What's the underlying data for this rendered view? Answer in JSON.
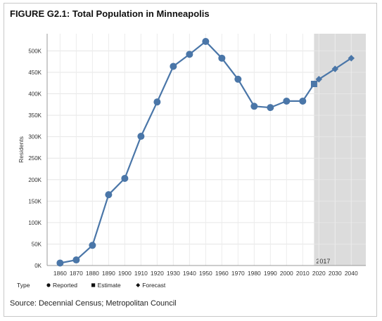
{
  "title": "FIGURE G2.1: Total Population in Minneapolis",
  "source": "Source: Decennial Census; Metropolitan Council",
  "chart_data": {
    "type": "line",
    "ylabel": "Residents",
    "xlabel": "",
    "ylim": [
      0,
      540000
    ],
    "y_ticks": [
      0,
      50000,
      100000,
      150000,
      200000,
      250000,
      300000,
      350000,
      400000,
      450000,
      500000
    ],
    "y_tick_labels": [
      "0K",
      "50K",
      "100K",
      "150K",
      "200K",
      "250K",
      "300K",
      "350K",
      "400K",
      "450K",
      "500K"
    ],
    "x_tick_labels": [
      "1860",
      "1870",
      "1880",
      "1890",
      "1900",
      "1910",
      "1920",
      "1930",
      "1940",
      "1950",
      "1960",
      "1970",
      "1980",
      "1990",
      "2000",
      "2010",
      "2020",
      "2030",
      "2040"
    ],
    "x_range": [
      1852,
      2049
    ],
    "forecast_region": {
      "start": 2017,
      "end": 2049,
      "label": "2017",
      "color": "#dcdcdc"
    },
    "grid": true,
    "line_color": "#4a76a8",
    "legend": {
      "title": "Type",
      "placement": "bottom-left",
      "items": [
        {
          "label": "Reported",
          "marker": "circle"
        },
        {
          "label": "Estimate",
          "marker": "square"
        },
        {
          "label": "Forecast",
          "marker": "diamond"
        }
      ]
    },
    "points": [
      {
        "x": 1860,
        "y": 5800,
        "type": "Reported"
      },
      {
        "x": 1870,
        "y": 13000,
        "type": "Reported"
      },
      {
        "x": 1880,
        "y": 47000,
        "type": "Reported"
      },
      {
        "x": 1890,
        "y": 165000,
        "type": "Reported"
      },
      {
        "x": 1900,
        "y": 203000,
        "type": "Reported"
      },
      {
        "x": 1910,
        "y": 301000,
        "type": "Reported"
      },
      {
        "x": 1920,
        "y": 381000,
        "type": "Reported"
      },
      {
        "x": 1930,
        "y": 464000,
        "type": "Reported"
      },
      {
        "x": 1940,
        "y": 492000,
        "type": "Reported"
      },
      {
        "x": 1950,
        "y": 522000,
        "type": "Reported"
      },
      {
        "x": 1960,
        "y": 483000,
        "type": "Reported"
      },
      {
        "x": 1970,
        "y": 434000,
        "type": "Reported"
      },
      {
        "x": 1980,
        "y": 371000,
        "type": "Reported"
      },
      {
        "x": 1990,
        "y": 368000,
        "type": "Reported"
      },
      {
        "x": 2000,
        "y": 383000,
        "type": "Reported"
      },
      {
        "x": 2010,
        "y": 383000,
        "type": "Reported"
      },
      {
        "x": 2017,
        "y": 423000,
        "type": "Estimate"
      },
      {
        "x": 2020,
        "y": 434000,
        "type": "Forecast"
      },
      {
        "x": 2030,
        "y": 458000,
        "type": "Forecast"
      },
      {
        "x": 2040,
        "y": 483000,
        "type": "Forecast"
      }
    ]
  }
}
